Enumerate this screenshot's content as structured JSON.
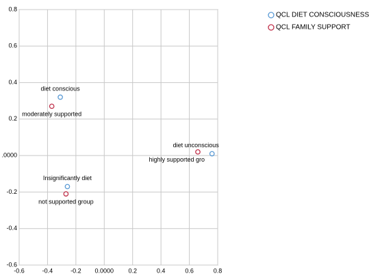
{
  "chart_data": {
    "type": "scatter",
    "series": [
      {
        "name": "QCL DIET CONSCIOUSNESS",
        "color": "#5b9bd5",
        "x": [
          -0.31,
          0.76,
          -0.26
        ],
        "values": [
          0.32,
          0.01,
          -0.17
        ],
        "labels": [
          "diet conscious",
          "diet unconscious",
          "Insignificantly diet"
        ]
      },
      {
        "name": "QCL FAMILY SUPPORT",
        "color": "#c0304a",
        "x": [
          -0.37,
          0.66,
          -0.27
        ],
        "values": [
          0.27,
          0.02,
          -0.21
        ],
        "labels": [
          "moderately supported",
          "highly supported gro",
          "not supported group"
        ]
      }
    ],
    "xlim": [
      -0.6,
      0.8
    ],
    "xticks": [
      -0.6,
      -0.4,
      -0.2,
      {
        "value": 0,
        "label": "0.0000"
      },
      0.2,
      0.4,
      0.6,
      0.8
    ],
    "ylim": [
      -0.6,
      0.8
    ],
    "yticks": [
      0.8,
      0.6,
      0.4,
      0.2,
      {
        "value": 0,
        "label": ".0000"
      },
      -0.2,
      -0.4,
      -0.6
    ],
    "grid": true,
    "legend": "top-right"
  }
}
